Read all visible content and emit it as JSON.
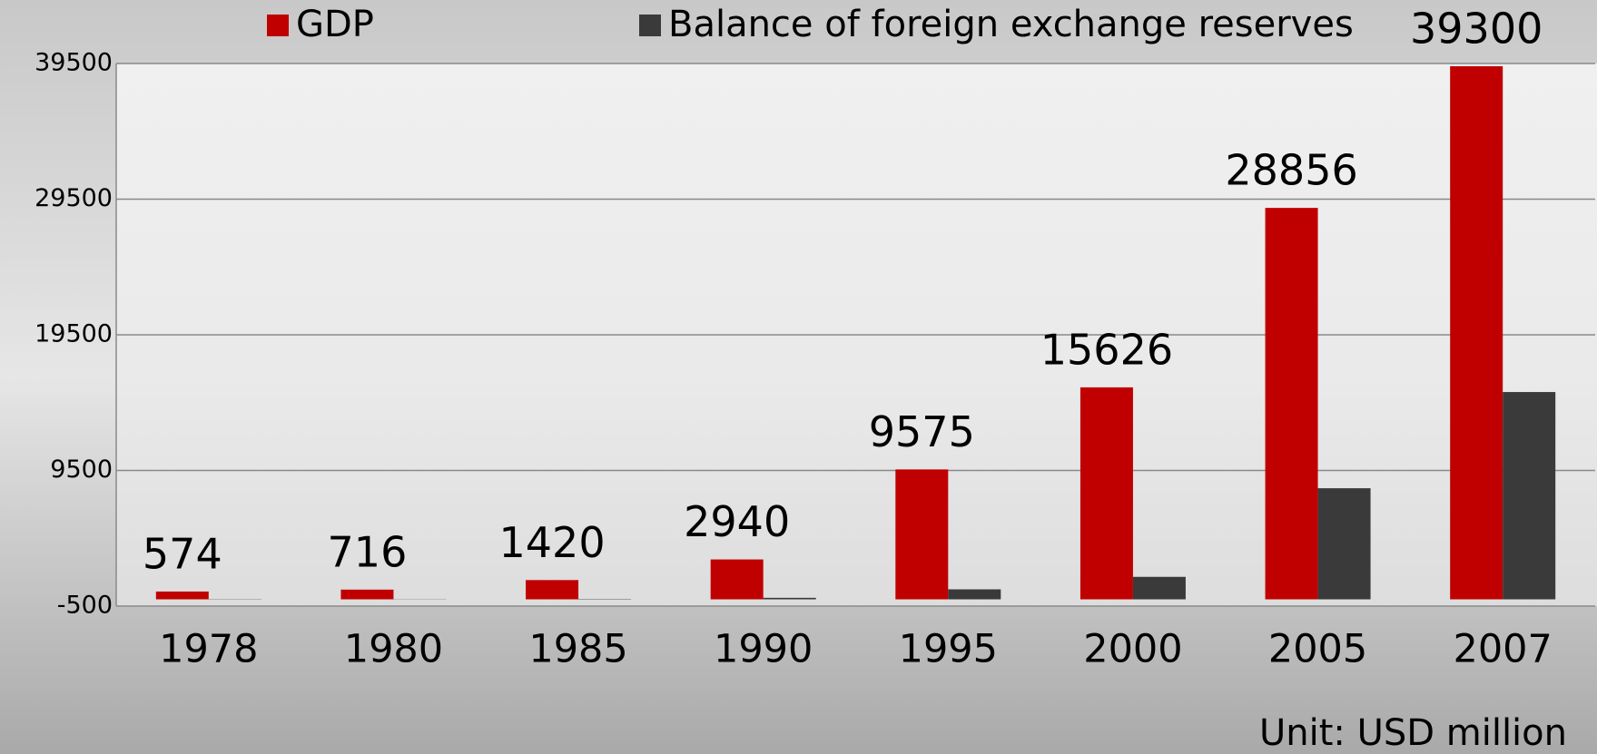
{
  "chart_data": {
    "type": "bar",
    "categories": [
      "1978",
      "1980",
      "1985",
      "1990",
      "1995",
      "2000",
      "2005",
      "2007"
    ],
    "series": [
      {
        "name": "GDP",
        "color": "#c00000",
        "values": [
          574,
          716,
          1420,
          2940,
          9575,
          15626,
          28856,
          39300
        ]
      },
      {
        "name": "Balance of foreign exchange reserves",
        "color": "#3a3a3a",
        "values": [
          17,
          -13,
          26,
          111,
          736,
          1656,
          8189,
          15282
        ]
      }
    ],
    "ylim": [
      -500,
      39500
    ],
    "yticks": [
      -500,
      9500,
      19500,
      29500,
      39500
    ],
    "grid": true,
    "annotation": "Unit: USD million"
  }
}
